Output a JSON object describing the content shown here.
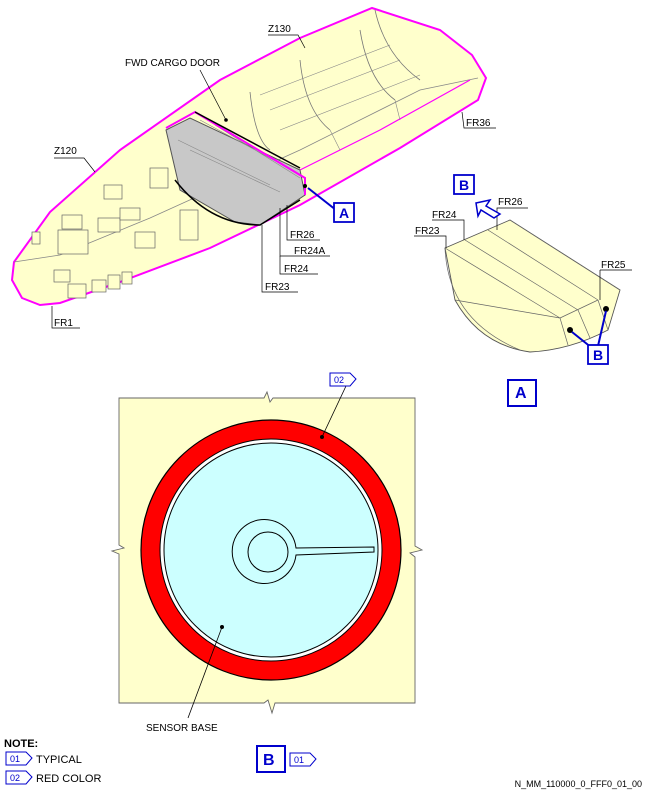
{
  "labels": {
    "z130": "Z130",
    "fwd_cargo_door": "FWD CARGO DOOR",
    "z120": "Z120",
    "fr36": "FR36",
    "fr26": "FR26",
    "fr24a": "FR24A",
    "fr24": "FR24",
    "fr23": "FR23",
    "fr1": "FR1",
    "fr25": "FR25",
    "sensor_base": "SENSOR BASE"
  },
  "callouts": {
    "a": "A",
    "b": "B",
    "typical": "01",
    "red_color": "02"
  },
  "note": {
    "title": "NOTE:",
    "items": [
      {
        "tag": "01",
        "text": "TYPICAL"
      },
      {
        "tag": "02",
        "text": "RED COLOR"
      }
    ]
  },
  "figure_id": "N_MM_110000_0_FFF0_01_00",
  "colors": {
    "fuselage_fill": "#ffffcc",
    "outline_magenta": "#ff00ff",
    "callout_blue": "#0000cc",
    "door_gray": "#c8c8c8",
    "ring_red": "#ff0000",
    "sensor_fill": "#ccffff",
    "panel_fill": "#ffffcc"
  }
}
